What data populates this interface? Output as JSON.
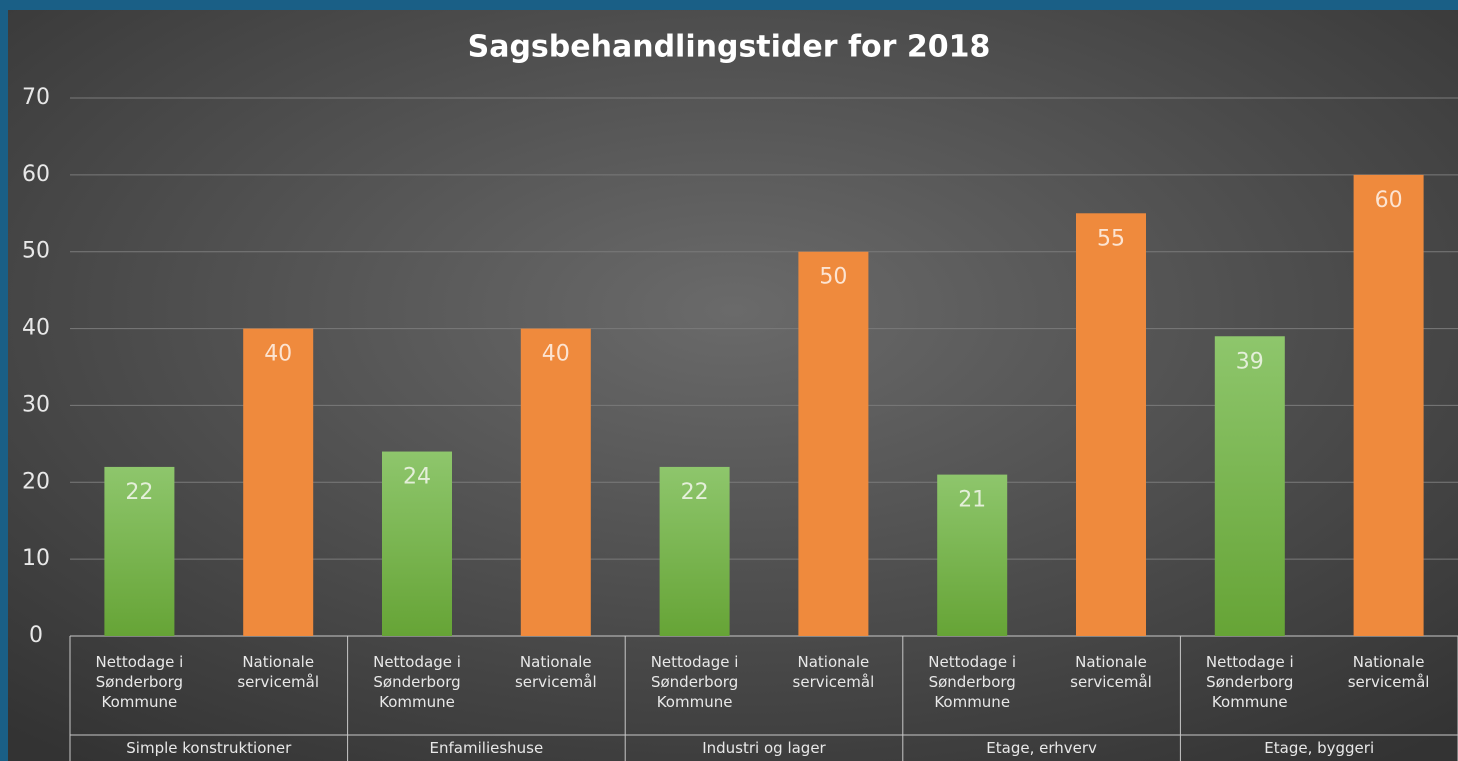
{
  "chart_data": {
    "type": "bar",
    "title": "Sagsbehandlingstider for 2018",
    "categories": [
      "Simple konstruktioner",
      "Enfamilieshuse",
      "Industri og lager",
      "Etage, erhverv",
      "Etage, byggeri"
    ],
    "series": [
      {
        "name": "Nettodage i Sønderborg Kommune",
        "color": "#79b34c",
        "values": [
          22,
          24,
          22,
          21,
          39
        ]
      },
      {
        "name": "Nationale servicemål",
        "color": "#ef8a3d",
        "values": [
          40,
          40,
          50,
          55,
          60
        ]
      }
    ],
    "ylim": [
      0,
      70
    ],
    "yticks": [
      0,
      10,
      20,
      30,
      40,
      50,
      60,
      70
    ],
    "grid": true
  }
}
